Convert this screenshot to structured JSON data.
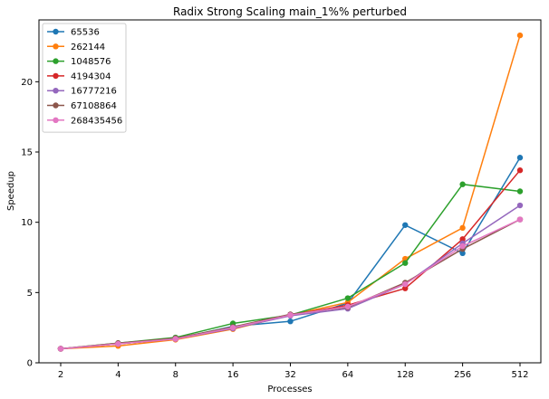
{
  "chart_data": {
    "type": "line",
    "title": "Radix Strong Scaling main_1%% perturbed",
    "xlabel": "Processes",
    "ylabel": "Speedup",
    "categories": [
      "2",
      "4",
      "8",
      "16",
      "32",
      "64",
      "128",
      "256",
      "512"
    ],
    "ylim": [
      0,
      24.4
    ],
    "yticks": [
      0,
      5,
      10,
      15,
      20
    ],
    "grid": false,
    "legend_position": "top-left",
    "series": [
      {
        "name": "65536",
        "color": "#1f77b4",
        "values": [
          1.0,
          1.35,
          1.7,
          2.6,
          2.95,
          4.25,
          9.8,
          7.8,
          14.6
        ]
      },
      {
        "name": "262144",
        "color": "#ff7f0e",
        "values": [
          1.0,
          1.2,
          1.65,
          2.4,
          3.4,
          4.3,
          7.4,
          9.6,
          23.3
        ]
      },
      {
        "name": "1048576",
        "color": "#2ca02c",
        "values": [
          1.0,
          1.4,
          1.8,
          2.8,
          3.4,
          4.6,
          7.1,
          12.7,
          12.2
        ]
      },
      {
        "name": "4194304",
        "color": "#d62728",
        "values": [
          1.0,
          1.35,
          1.7,
          2.45,
          3.4,
          4.1,
          5.3,
          8.8,
          13.7
        ]
      },
      {
        "name": "16777216",
        "color": "#9467bd",
        "values": [
          1.0,
          1.35,
          1.7,
          2.45,
          3.35,
          3.85,
          5.6,
          8.5,
          11.2
        ]
      },
      {
        "name": "67108864",
        "color": "#8c564b",
        "values": [
          1.0,
          1.4,
          1.75,
          2.55,
          3.45,
          3.95,
          5.7,
          8.1,
          10.2
        ]
      },
      {
        "name": "268435456",
        "color": "#e377c2",
        "values": [
          1.0,
          1.35,
          1.7,
          2.5,
          3.4,
          4.0,
          5.6,
          8.3,
          10.2
        ]
      }
    ]
  }
}
